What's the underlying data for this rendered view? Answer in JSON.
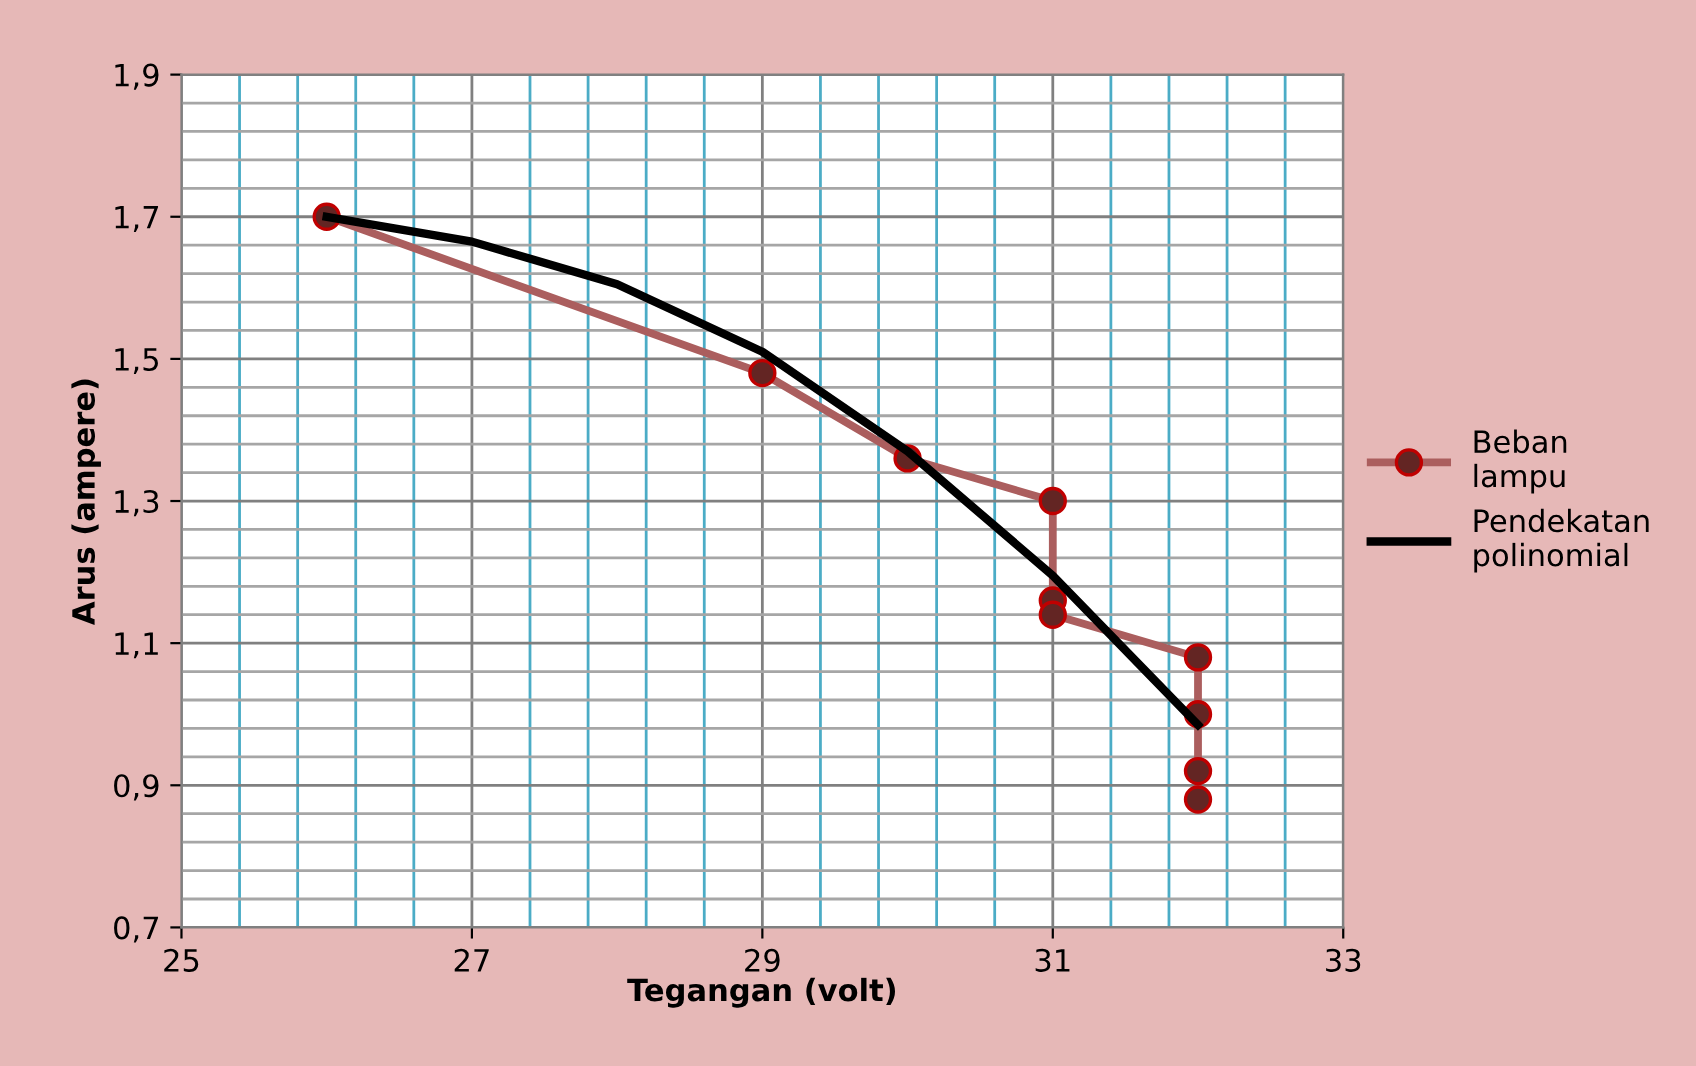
{
  "chart_data": {
    "type": "line",
    "xlabel": "Tegangan (volt)",
    "ylabel": "Arus (ampere)",
    "xlim": [
      25,
      33
    ],
    "xticks": [
      25,
      {
        "value": 25.4,
        "label": null
      },
      {
        "value": 25.8,
        "label": null
      },
      {
        "value": 26.2,
        "label": null
      },
      {
        "value": 26.6,
        "label": null
      },
      27,
      {
        "value": 27.4,
        "label": null
      },
      {
        "value": 27.8,
        "label": null
      },
      {
        "value": 28.2,
        "label": null
      },
      {
        "value": 28.6,
        "label": null
      },
      29,
      {
        "value": 29.4,
        "label": null
      },
      {
        "value": 29.8,
        "label": null
      },
      {
        "value": 30.2,
        "label": null
      },
      {
        "value": 30.6,
        "label": null
      },
      31,
      {
        "value": 31.4,
        "label": null
      },
      {
        "value": 31.8,
        "label": null
      },
      {
        "value": 32.2,
        "label": null
      },
      {
        "value": 32.6,
        "label": null
      },
      33
    ],
    "ylim": [
      0.7,
      1.9
    ],
    "yticks": [
      {
        "value": 0.7,
        "label": "0,7"
      },
      {
        "value": 0.74,
        "label": null
      },
      {
        "value": 0.78,
        "label": null
      },
      {
        "value": 0.82,
        "label": null
      },
      {
        "value": 0.86,
        "label": null
      },
      {
        "value": 0.9,
        "label": "0,9"
      },
      {
        "value": 0.94,
        "label": null
      },
      {
        "value": 0.98,
        "label": null
      },
      {
        "value": 1.02,
        "label": null
      },
      {
        "value": 1.06,
        "label": null
      },
      {
        "value": 1.1,
        "label": "1,1"
      },
      {
        "value": 1.14,
        "label": null
      },
      {
        "value": 1.18,
        "label": null
      },
      {
        "value": 1.22,
        "label": null
      },
      {
        "value": 1.26,
        "label": null
      },
      {
        "value": 1.3,
        "label": "1,3"
      },
      {
        "value": 1.34,
        "label": null
      },
      {
        "value": 1.38,
        "label": null
      },
      {
        "value": 1.42,
        "label": null
      },
      {
        "value": 1.46,
        "label": null
      },
      {
        "value": 1.5,
        "label": "1,5"
      },
      {
        "value": 1.54,
        "label": null
      },
      {
        "value": 1.58,
        "label": null
      },
      {
        "value": 1.62,
        "label": null
      },
      {
        "value": 1.66,
        "label": null
      },
      {
        "value": 1.7,
        "label": "1,7"
      },
      {
        "value": 1.74,
        "label": null
      },
      {
        "value": 1.78,
        "label": null
      },
      {
        "value": 1.82,
        "label": null
      },
      {
        "value": 1.86,
        "label": null
      },
      {
        "value": 1.9,
        "label": "1,9"
      }
    ],
    "grid": true,
    "legend": "right",
    "series": [
      {
        "name": "Beban lampu",
        "color": "#ab5e5e",
        "marker": "circle",
        "x": [
          26,
          29,
          30,
          31,
          31,
          31,
          32,
          32,
          32,
          32
        ],
        "values": [
          1.7,
          1.48,
          1.36,
          1.3,
          1.16,
          1.14,
          1.08,
          1.0,
          0.92,
          0.88
        ]
      },
      {
        "name": "Pendekatan polinomial",
        "color": "#000000",
        "marker": "none",
        "x": [
          26,
          27,
          28,
          29,
          30,
          31,
          32
        ],
        "values": [
          1.7,
          1.665,
          1.605,
          1.51,
          1.37,
          1.195,
          0.985
        ]
      }
    ]
  }
}
